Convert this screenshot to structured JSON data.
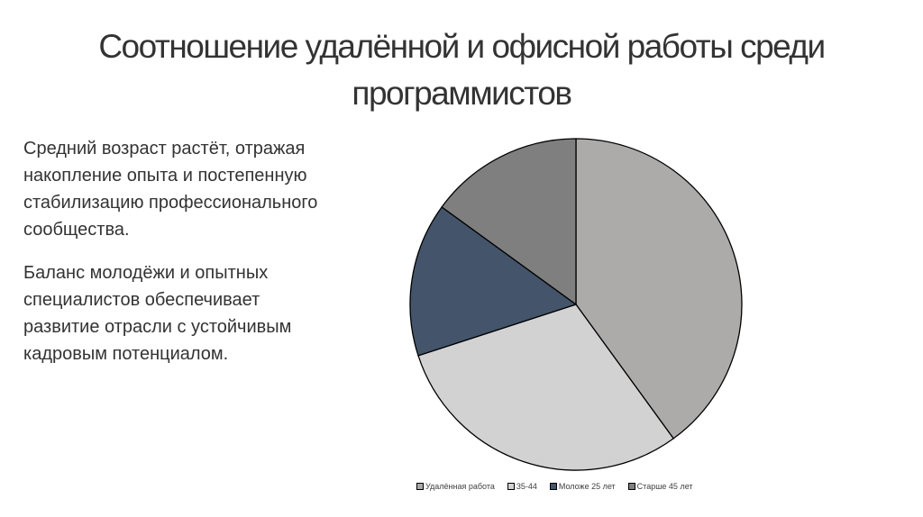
{
  "slide": {
    "title": "Соотношение удалённой и офисной работы среди программистов",
    "paragraphs": [
      "Средний возраст растёт, отражая накопление опыта и постепенную стабилизацию профессионального сообщества.",
      "Баланс молодёжи и опытных специалистов обеспечивает развитие отрасли с устойчивым кадровым потенциалом."
    ]
  },
  "chart_data": {
    "type": "pie",
    "categories": [
      "Удалённая работа",
      "35-44",
      "Моложе 25 лет",
      "Старше 45 лет"
    ],
    "values": [
      40,
      30,
      15,
      15
    ],
    "colors": [
      "#adaaaa",
      "#d3d2d3",
      "#44546a",
      "#7f7f7f"
    ],
    "start_angle_deg": 0,
    "direction": "clockwise",
    "legend_position": "bottom",
    "title": ""
  }
}
